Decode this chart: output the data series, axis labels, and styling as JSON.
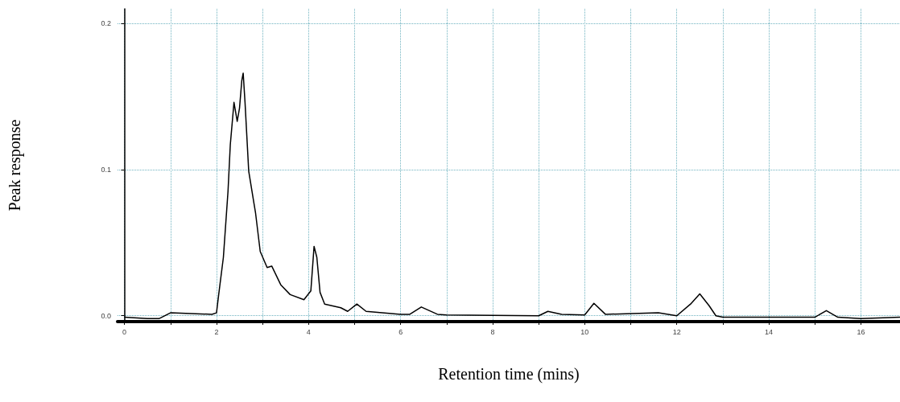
{
  "chart_data": {
    "type": "line",
    "xlabel": "Retention time (mins)",
    "ylabel": "Peak response",
    "xlim": [
      -0.15,
      16.85
    ],
    "ylim": [
      -0.004,
      0.21
    ],
    "xticks": [
      0,
      {
        "value": 1,
        "label": null
      },
      2,
      {
        "value": 3,
        "label": null
      },
      4,
      {
        "value": 5,
        "label": null
      },
      6,
      {
        "value": 7,
        "label": null
      },
      8,
      {
        "value": 9,
        "label": null
      },
      10,
      {
        "value": 11,
        "label": null
      },
      12,
      {
        "value": 13,
        "label": null
      },
      14,
      {
        "value": 15,
        "label": null
      },
      16
    ],
    "yticks": [
      {
        "value": 0,
        "label": "0.0"
      },
      {
        "value": 0.1,
        "label": "0.1"
      },
      {
        "value": 0.2,
        "label": "0.2"
      }
    ],
    "grid": true,
    "marker": "none",
    "line_style": "solid",
    "series": [
      {
        "color": "#000000",
        "x": [
          0,
          0.5,
          0.75,
          1,
          1.9,
          2,
          2.05,
          2.15,
          2.25,
          2.3,
          2.38,
          2.45,
          2.5,
          2.55,
          2.58,
          2.62,
          2.7,
          2.85,
          2.95,
          3.1,
          3.2,
          3.4,
          3.6,
          3.9,
          4.05,
          4.12,
          4.18,
          4.25,
          4.35,
          4.7,
          4.85,
          5.05,
          5.25,
          6,
          6.2,
          6.45,
          6.8,
          7,
          9,
          9.2,
          9.5,
          10,
          10.2,
          10.45,
          11.6,
          12,
          12.3,
          12.5,
          12.7,
          12.85,
          13,
          14.5,
          15,
          15.25,
          15.5,
          16,
          16.85
        ],
        "values": [
          -0.001,
          -0.002,
          -0.002,
          0.002,
          0.001,
          0.002,
          0.015,
          0.04,
          0.085,
          0.117,
          0.146,
          0.133,
          0.142,
          0.161,
          0.166,
          0.146,
          0.099,
          0.07,
          0.044,
          0.033,
          0.034,
          0.021,
          0.0145,
          0.011,
          0.017,
          0.0475,
          0.04,
          0.016,
          0.008,
          0.0055,
          0.003,
          0.008,
          0.003,
          0.001,
          0.001,
          0.006,
          0.001,
          0.0005,
          0,
          0.003,
          0.001,
          0.0005,
          0.0085,
          0.001,
          0.002,
          0,
          0.008,
          0.015,
          0.007,
          0,
          -0.001,
          -0.001,
          -0.001,
          0.0035,
          -0.001,
          -0.002,
          -0.001
        ]
      }
    ]
  }
}
